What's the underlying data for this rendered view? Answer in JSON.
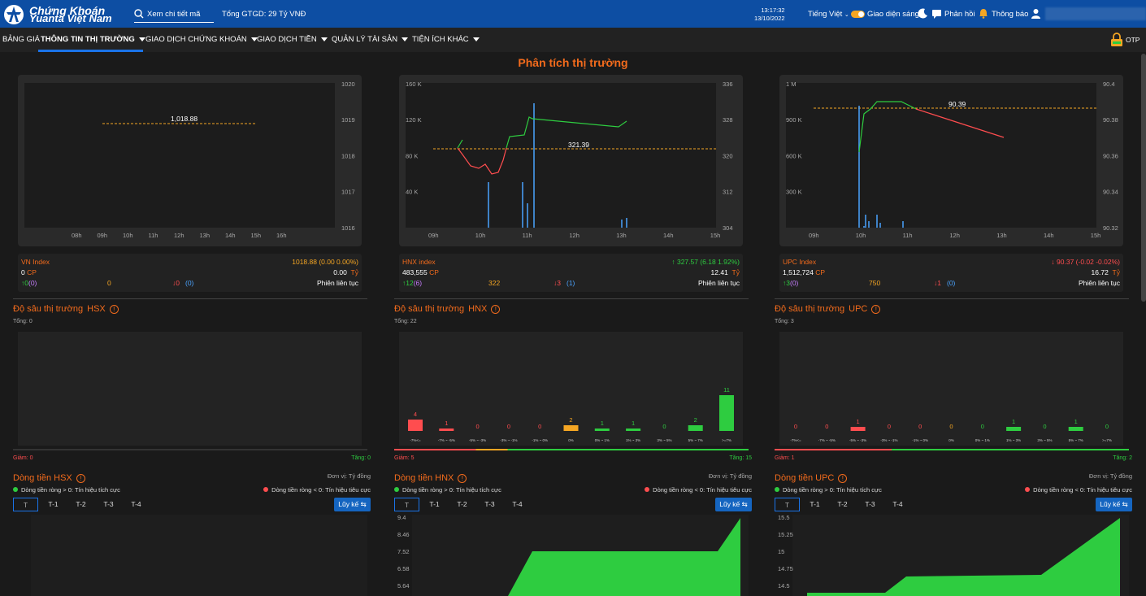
{
  "header": {
    "logo_line1": "Chứng Khoán",
    "logo_line2": "Yuanta Việt Nam",
    "search_placeholder": "Xem chi tiết mã",
    "total_value": "Tổng GTGD: 29 Tỷ VNĐ",
    "time": "13:17:32",
    "date": "13/10/2022",
    "language": "Tiếng Việt",
    "theme_label": "Giao diện sáng",
    "feedback_label": "Phản hồi",
    "notification_label": "Thông báo"
  },
  "nav": {
    "items": [
      "BẢNG GIÁ",
      "THÔNG TIN THỊ TRƯỜNG",
      "GIAO DỊCH CHỨNG KHOÁN",
      "GIAO DỊCH TIỀN",
      "QUẢN LÝ TÀI SẢN",
      "TIỆN ÍCH KHÁC"
    ],
    "otp_label": "OTP"
  },
  "page_title": "Phân tích thị trường",
  "markets": [
    {
      "exchange": "HSX",
      "index_name": "VN Index",
      "index_value": "1018.88 (0.00  0.00%)",
      "volume": "0",
      "volume_unit": "CP",
      "value": "0.00",
      "value_unit": "Tỷ",
      "up": "0",
      "ceiling": "(0)",
      "unchanged": "0",
      "down": "0",
      "floor": "(0)",
      "session": "Phiên liên tục",
      "depth_title": "Độ sâu thị trường",
      "total": "Tổng: 0",
      "giam": "Giảm: 0",
      "tang": "Tăng: 0",
      "flow_title": "Dòng tiền",
      "unit": "Đơn vị: Tỷ đồng",
      "legend_pos": "Dòng tiền ròng > 0: Tín hiệu tích cực",
      "legend_neg": "Dòng tiền ròng < 0: Tín hiệu tiêu cực",
      "tabs": [
        "T",
        "T-1",
        "T-2",
        "T-3",
        "T-4"
      ],
      "luyke": "Lũy kế ⇆",
      "chart": {
        "ref_label": "1,018.88",
        "y_right": [
          "1020",
          "1019",
          "1018",
          "1017",
          "1016"
        ],
        "y_left": [],
        "x": [
          "08h",
          "09h",
          "10h",
          "11h",
          "12h",
          "13h",
          "14h",
          "15h",
          "16h"
        ]
      },
      "depth_values": [],
      "flow_y": []
    },
    {
      "exchange": "HNX",
      "index_name": "HNX index",
      "index_value": "327.57  (6.18  1.92%)",
      "volume": "483,555",
      "volume_unit": "CP",
      "value": "12.41",
      "value_unit": "Tỷ",
      "up": "12",
      "ceiling": "(6)",
      "unchanged": "322",
      "down": "3",
      "floor": "(1)",
      "session": "Phiên liên tục",
      "depth_title": "Độ sâu thị trường",
      "total": "Tổng: 22",
      "giam": "Giảm: 5",
      "tang": "Tăng: 15",
      "flow_title": "Dòng tiền",
      "unit": "Đơn vị: Tỷ đồng",
      "legend_pos": "Dòng tiền ròng > 0: Tín hiệu tích cực",
      "legend_neg": "Dòng tiền ròng < 0: Tín hiệu tiêu cực",
      "tabs": [
        "T",
        "T-1",
        "T-2",
        "T-3",
        "T-4"
      ],
      "luyke": "Lũy kế ⇆",
      "chart": {
        "ref_label": "321.39",
        "y_right": [
          "336",
          "328",
          "320",
          "312",
          "304"
        ],
        "y_left": [
          "160 K",
          "120 K",
          "80 K",
          "40 K"
        ],
        "x": [
          "09h",
          "10h",
          "11h",
          "12h",
          "13h",
          "14h",
          "15h"
        ]
      },
      "depth_values": [
        4,
        1,
        0,
        0,
        0,
        2,
        1,
        1,
        0,
        2,
        11
      ],
      "flow_y": [
        "9.4",
        "8.46",
        "7.52",
        "6.58",
        "5.64"
      ]
    },
    {
      "exchange": "UPC",
      "index_name": "UPC Index",
      "index_value": "90.37  (-0.02  -0.02%)",
      "volume": "1,512,724",
      "volume_unit": "CP",
      "value": "16.72",
      "value_unit": "Tỷ",
      "up": "3",
      "ceiling": "(0)",
      "unchanged": "750",
      "down": "1",
      "floor": "(0)",
      "session": "Phiên liên tục",
      "depth_title": "Độ sâu thị trường",
      "total": "Tổng: 3",
      "giam": "Giảm: 1",
      "tang": "Tăng: 2",
      "flow_title": "Dòng tiền",
      "unit": "Đơn vị: Tỷ đồng",
      "legend_pos": "Dòng tiền ròng > 0: Tín hiệu tích cực",
      "legend_neg": "Dòng tiền ròng < 0: Tín hiệu tiêu cực",
      "tabs": [
        "T",
        "T-1",
        "T-2",
        "T-3",
        "T-4"
      ],
      "luyke": "Lũy kế ⇆",
      "chart": {
        "ref_label": "90.39",
        "y_right": [
          "90.4",
          "90.38",
          "90.36",
          "90.34",
          "90.32"
        ],
        "y_left": [
          "1 M",
          "900 K",
          "600 K",
          "300 K"
        ],
        "x": [
          "09h",
          "10h",
          "11h",
          "12h",
          "13h",
          "14h",
          "15h"
        ]
      },
      "depth_values": [
        0,
        0,
        1,
        0,
        0,
        0,
        0,
        1,
        0,
        1,
        0
      ],
      "flow_y": [
        "15.5",
        "15.25",
        "15",
        "14.75",
        "14.5"
      ]
    }
  ],
  "depth_categories": [
    "-7%<=",
    "-7% ~ -5%",
    "-5% ~ -3%",
    "-3% ~ -1%",
    "-1% ~ 0%",
    "0%",
    "0% ~ 1%",
    "1% ~ 3%",
    "3% ~ 5%",
    "5% ~ 7%",
    ">=7%"
  ],
  "colors": {
    "accent": "#f36b1c",
    "up": "#2ecc40",
    "down": "#ff4d4f",
    "ref": "#f5a623",
    "header": "#0d4ea3"
  }
}
